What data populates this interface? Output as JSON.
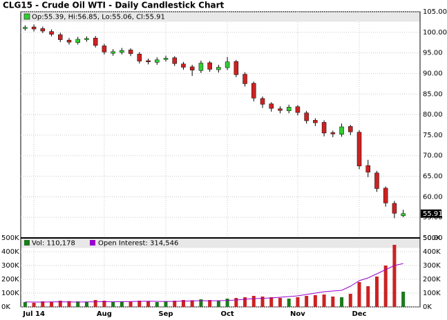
{
  "chart_data": [
    {
      "type": "candlestick",
      "title": "CLG15 - Crude Oil WTI - Daily Candlestick Chart",
      "legend_text": "Op:55.39, Hi:56.85, Lo:55.06, Cl:55.91",
      "up_color": "#33cc33",
      "down_color": "#cc2222",
      "grid": true,
      "ylim": [
        50,
        105
      ],
      "yticks": [
        {
          "value": 50,
          "label": "50.00"
        },
        {
          "value": 55,
          "label": "55.00"
        },
        {
          "value": 60,
          "label": "60.00"
        },
        {
          "value": 65,
          "label": "65.00"
        },
        {
          "value": 70,
          "label": "70.00"
        },
        {
          "value": 75,
          "label": "75.00"
        },
        {
          "value": 80,
          "label": "80.00"
        },
        {
          "value": 85,
          "label": "85.00"
        },
        {
          "value": 90,
          "label": "90.00"
        },
        {
          "value": 95,
          "label": "95.00"
        },
        {
          "value": 100,
          "label": "100.00"
        },
        {
          "value": 105,
          "label": "105.00"
        }
      ],
      "open": [
        100.9,
        101.3,
        100.9,
        100.2,
        99.4,
        98.1,
        97.5,
        98.2,
        98.6,
        96.7,
        94.9,
        95.1,
        95.7,
        94.7,
        93.1,
        92.7,
        93.4,
        93.8,
        92.3,
        91.6,
        90.7,
        92.6,
        90.9,
        91.4,
        92.9,
        89.8,
        87.6,
        83.9,
        82.6,
        81.4,
        80.9,
        81.9,
        80.4,
        78.6,
        78.1,
        75.6,
        75.2,
        77.1,
        75.7,
        67.6,
        65.8,
        62.1,
        58.4,
        55.39
      ],
      "high": [
        101.7,
        101.9,
        101.4,
        100.7,
        99.9,
        98.6,
        98.9,
        99.0,
        99.1,
        97.2,
        95.9,
        96.2,
        96.1,
        95.2,
        93.6,
        93.9,
        94.3,
        94.2,
        92.8,
        92.1,
        93.1,
        93.0,
        92.1,
        94.0,
        93.3,
        90.3,
        88.0,
        84.4,
        83.0,
        82.0,
        82.4,
        82.3,
        80.9,
        79.1,
        78.6,
        76.1,
        77.8,
        77.5,
        76.2,
        69.0,
        66.3,
        62.5,
        59.0,
        56.85
      ],
      "low": [
        100.4,
        100.2,
        99.8,
        99.0,
        97.6,
        97.0,
        97.0,
        97.7,
        96.3,
        94.6,
        94.3,
        94.6,
        94.2,
        92.4,
        92.2,
        92.1,
        92.9,
        91.8,
        90.9,
        89.4,
        90.1,
        90.4,
        90.2,
        90.8,
        89.1,
        86.8,
        83.2,
        81.6,
        80.7,
        80.3,
        80.3,
        79.8,
        77.8,
        77.2,
        74.7,
        74.5,
        74.6,
        75.0,
        66.7,
        64.8,
        61.2,
        57.6,
        54.8,
        55.06
      ],
      "close": [
        101.2,
        100.8,
        100.3,
        99.5,
        98.2,
        97.6,
        98.3,
        98.5,
        96.8,
        95.2,
        95.3,
        95.6,
        94.8,
        93.0,
        92.8,
        93.3,
        93.7,
        92.4,
        91.5,
        90.8,
        92.5,
        91.0,
        91.5,
        92.8,
        89.7,
        87.5,
        84.0,
        82.5,
        81.5,
        81.0,
        81.8,
        80.5,
        78.5,
        78.0,
        75.5,
        75.3,
        77.0,
        75.8,
        67.5,
        66.0,
        62.0,
        58.5,
        56.0,
        55.91
      ]
    },
    {
      "type": "bar",
      "grid": true,
      "categories": [
        null,
        "Jul 14",
        null,
        null,
        null,
        null,
        null,
        null,
        null,
        "Aug",
        null,
        null,
        null,
        null,
        null,
        null,
        "Sep",
        null,
        null,
        null,
        null,
        null,
        null,
        "Oct",
        null,
        null,
        null,
        null,
        null,
        null,
        null,
        "Nov",
        null,
        null,
        null,
        null,
        null,
        null,
        "Dec",
        null,
        null,
        null,
        null,
        null
      ],
      "ylim": [
        0,
        500000
      ],
      "yticks": [
        {
          "value": 0,
          "label": "0K"
        },
        {
          "value": 100000,
          "label": "100K"
        },
        {
          "value": 200000,
          "label": "200K"
        },
        {
          "value": 300000,
          "label": "300K"
        },
        {
          "value": 400000,
          "label": "400K"
        },
        {
          "value": 500000,
          "label": "500K"
        }
      ],
      "series": [
        {
          "name": "Vol: 110,178",
          "color": "#1a7a1a",
          "values": [
            35000,
            30000,
            40000,
            38000,
            45000,
            42000,
            40000,
            38000,
            50000,
            45000,
            35000,
            40000,
            38000,
            45000,
            40000,
            35000,
            42000,
            45000,
            50000,
            48000,
            55000,
            50000,
            45000,
            60000,
            65000,
            70000,
            80000,
            75000,
            70000,
            65000,
            60000,
            70000,
            80000,
            85000,
            90000,
            75000,
            70000,
            95000,
            180000,
            150000,
            220000,
            300000,
            450000,
            110178
          ]
        },
        {
          "name": "Open Interest: 314,546",
          "color": "#9a00cc",
          "values": [
            36000,
            35000,
            35000,
            36000,
            37000,
            36000,
            35000,
            36000,
            37000,
            38000,
            37000,
            38000,
            39000,
            40000,
            41000,
            40000,
            39000,
            40000,
            42000,
            43000,
            45000,
            44000,
            45000,
            47000,
            50000,
            55000,
            60000,
            62000,
            65000,
            70000,
            75000,
            80000,
            90000,
            100000,
            110000,
            115000,
            120000,
            150000,
            190000,
            210000,
            240000,
            270000,
            300000,
            314546
          ]
        }
      ]
    }
  ]
}
